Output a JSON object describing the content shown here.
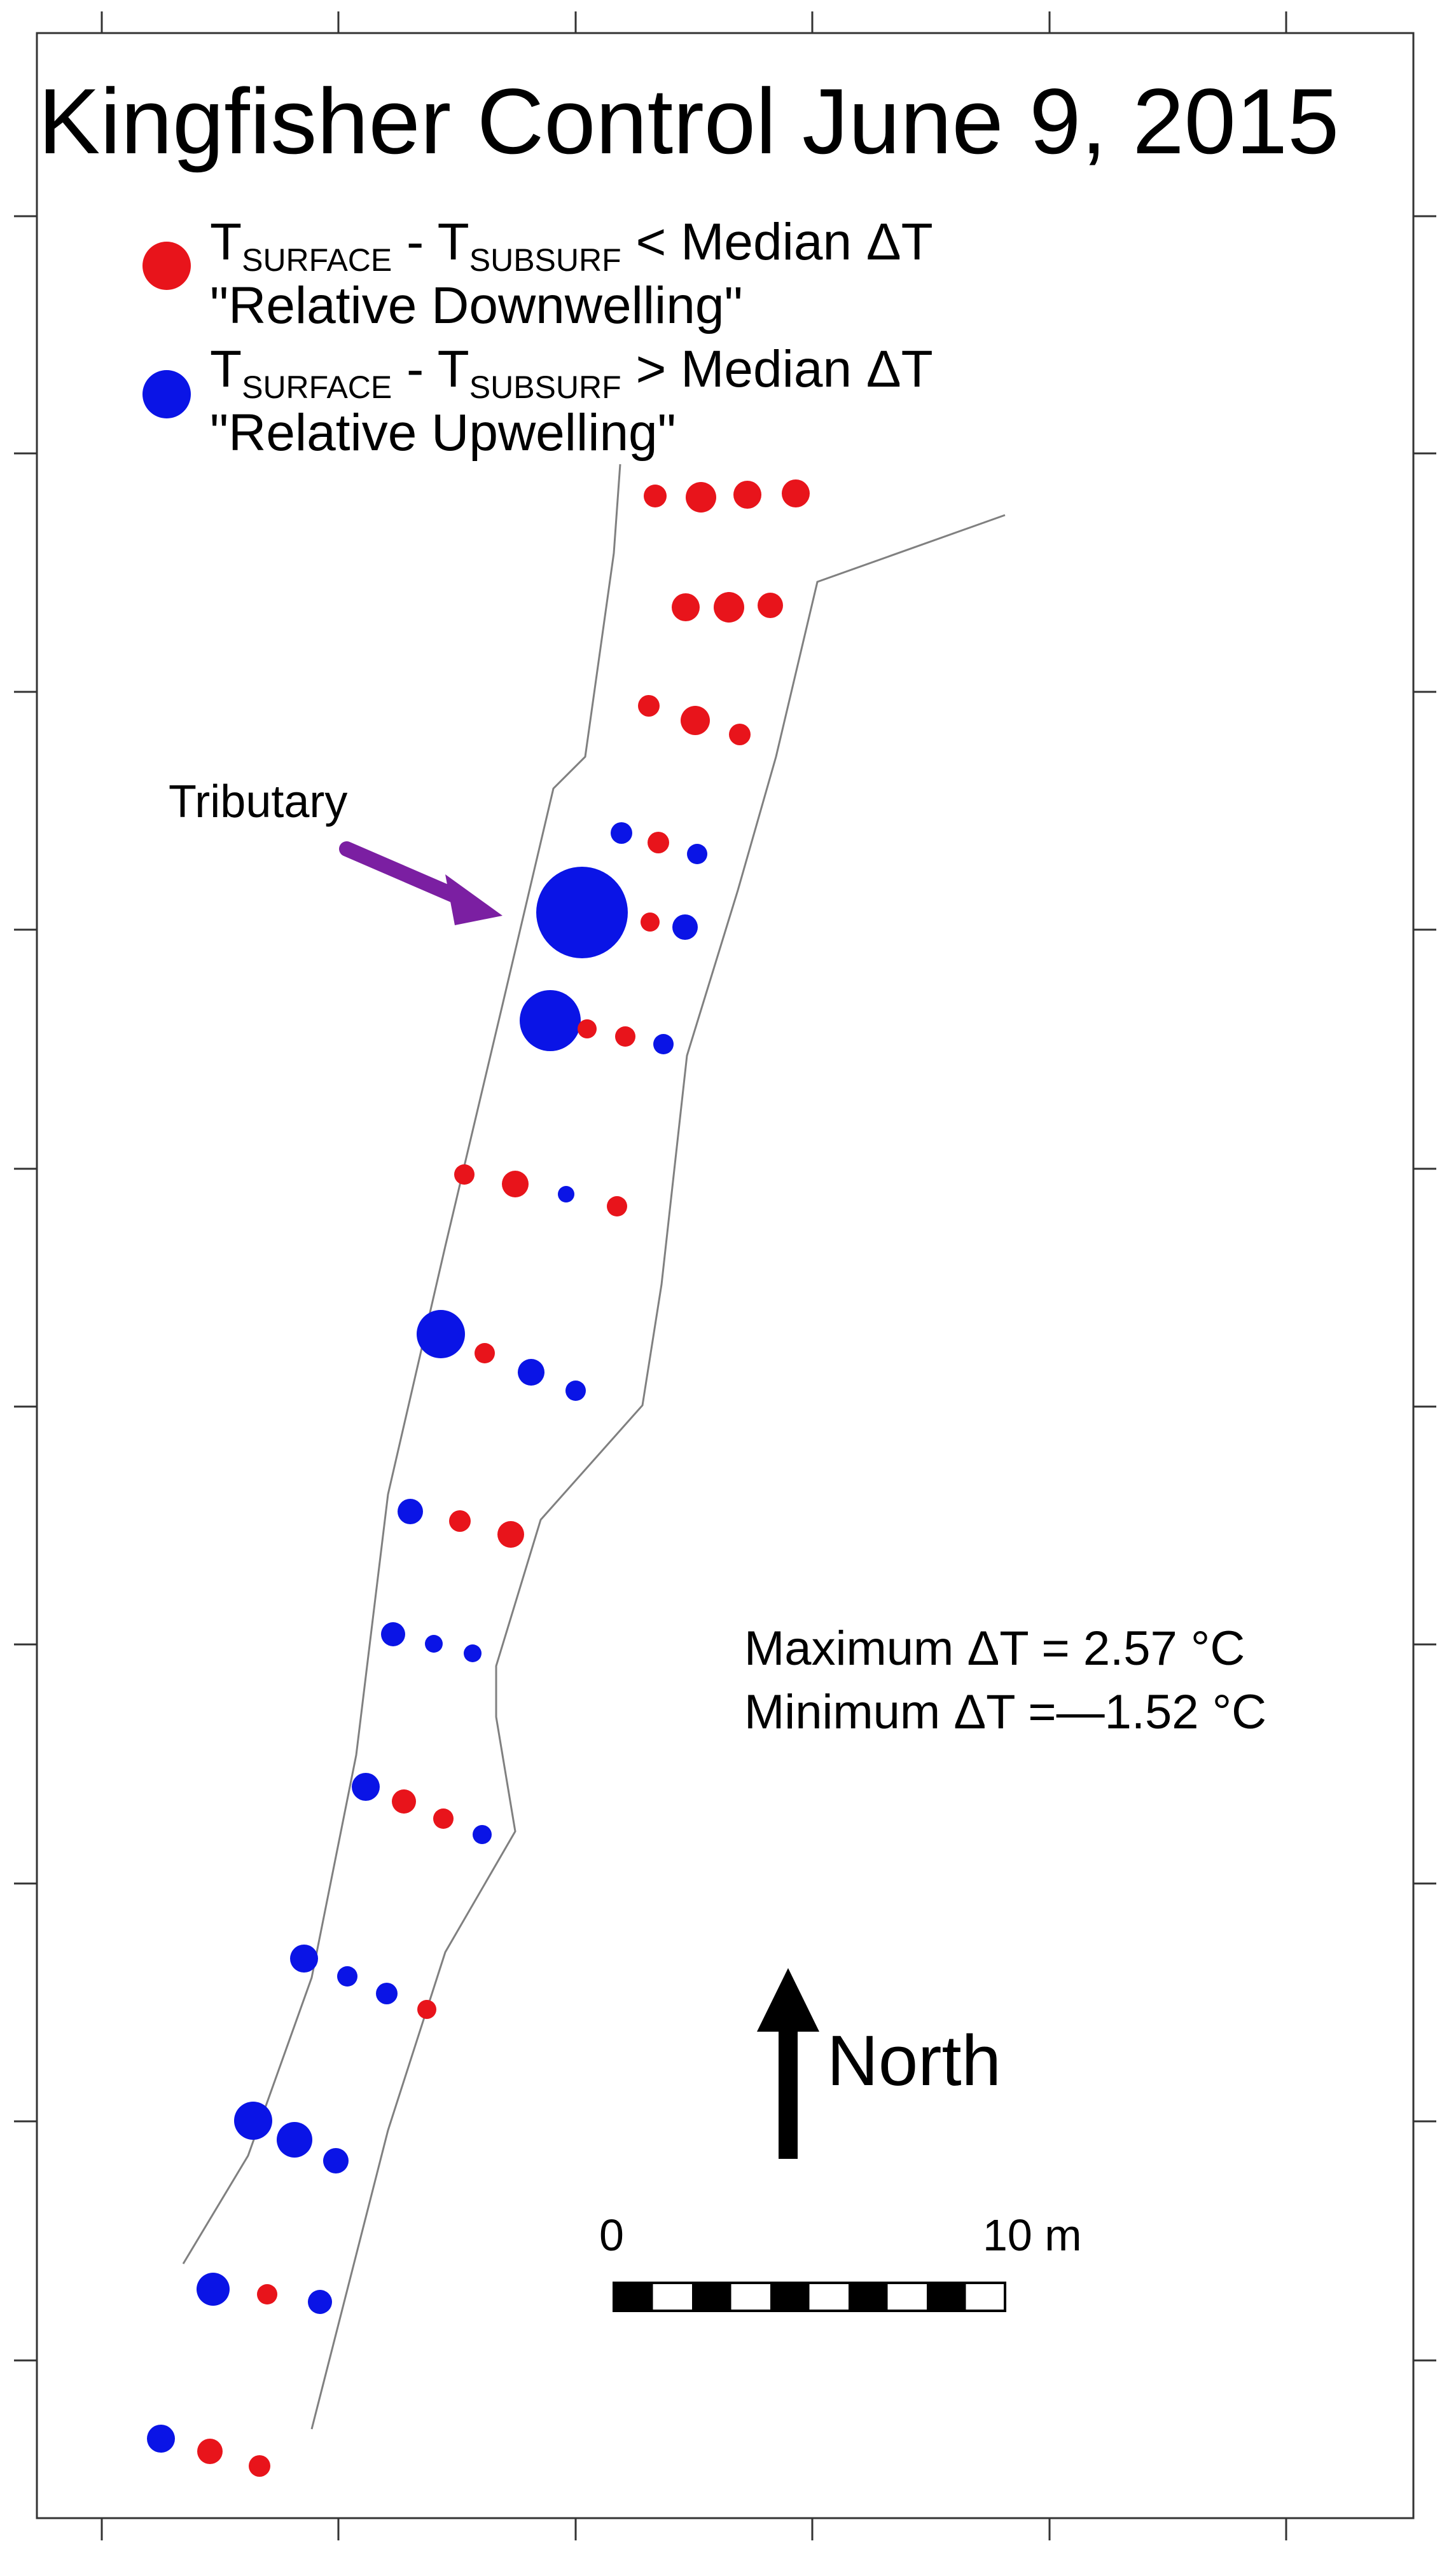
{
  "title": "Kingfisher Control June 9, 2015",
  "legend": {
    "items": [
      {
        "color": "#e8141b",
        "t_surface": "T",
        "surface_sub": "SURFACE",
        "sep": " - ",
        "t_subsurf": "T",
        "subsurf_sub": "SUBSURF",
        "relation": " < Median ΔT",
        "label": "\"Relative Downwelling\""
      },
      {
        "color": "#0a14e6",
        "t_surface": "T",
        "surface_sub": "SURFACE",
        "sep": " - ",
        "t_subsurf": "T",
        "subsurf_sub": "SUBSURF",
        "relation": " > Median ΔT",
        "label": "\"Relative Upwelling\""
      }
    ]
  },
  "annotations": {
    "tributary": "Tributary",
    "tributary_arrow_color": "#7b1fa2",
    "max_dt": "Maximum ΔT = 2.57 °C",
    "min_dt": "Minimum ΔT =—1.52 °C"
  },
  "north_arrow": {
    "label": "North",
    "icon": "north-arrow-icon"
  },
  "scale_bar": {
    "start_label": "0",
    "end_label": "10 m",
    "segments": 10
  },
  "colors": {
    "downwelling": "#e8141b",
    "upwelling": "#0a14e6",
    "river_bank": "#808080"
  }
}
